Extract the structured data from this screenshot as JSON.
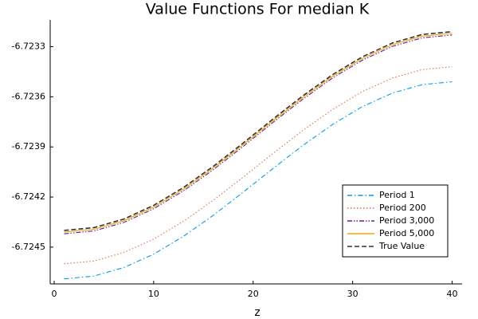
{
  "chart_data": {
    "type": "line",
    "title": "Value Functions For median K",
    "xlabel": "z",
    "x": [
      1,
      4,
      7,
      10,
      13,
      16,
      19,
      22,
      25,
      28,
      31,
      34,
      37,
      40
    ],
    "series": [
      {
        "name": "Period 1",
        "color": "#009af9",
        "style": "dashdot",
        "values": [
          -6.72469,
          -6.724673,
          -6.724622,
          -6.724542,
          -6.724435,
          -6.724309,
          -6.724171,
          -6.724029,
          -6.723891,
          -6.723765,
          -6.723658,
          -6.723578,
          -6.723527,
          -6.72351
        ]
      },
      {
        "name": "Period 200",
        "color": "#e26f46",
        "style": "dot",
        "values": [
          -6.7246,
          -6.724583,
          -6.724532,
          -6.724452,
          -6.724345,
          -6.724219,
          -6.724081,
          -6.723939,
          -6.723801,
          -6.723675,
          -6.723568,
          -6.723488,
          -6.723437,
          -6.72342
        ]
      },
      {
        "name": "Period 3,000",
        "color": "#6a1b9a",
        "style": "dashdotdot",
        "values": [
          -6.72442,
          -6.724403,
          -6.724352,
          -6.72427,
          -6.724163,
          -6.724036,
          -6.723897,
          -6.723753,
          -6.723614,
          -6.723487,
          -6.72338,
          -6.723298,
          -6.723247,
          -6.72323
        ]
      },
      {
        "name": "Period 5,000",
        "color": "#f0a500",
        "style": "solid",
        "values": [
          -6.72441,
          -6.724393,
          -6.724342,
          -6.72426,
          -6.724153,
          -6.724026,
          -6.723887,
          -6.723743,
          -6.723604,
          -6.723477,
          -6.72337,
          -6.723288,
          -6.723237,
          -6.72322
        ]
      },
      {
        "name": "True Value",
        "color": "#333333",
        "style": "dash",
        "values": [
          -6.7244,
          -6.724383,
          -6.724332,
          -6.72425,
          -6.724143,
          -6.724016,
          -6.723877,
          -6.723733,
          -6.723594,
          -6.723467,
          -6.72336,
          -6.723278,
          -6.723227,
          -6.72321
        ]
      }
    ],
    "xlim": [
      -0.4,
      41
    ],
    "xticks": [
      0,
      10,
      20,
      30,
      40
    ],
    "ylim": [
      -6.72472,
      -6.72314
    ],
    "yticks": [
      -6.7233,
      -6.7236,
      -6.7239,
      -6.7242,
      -6.7245
    ],
    "grid": false,
    "legend": "lower right"
  }
}
